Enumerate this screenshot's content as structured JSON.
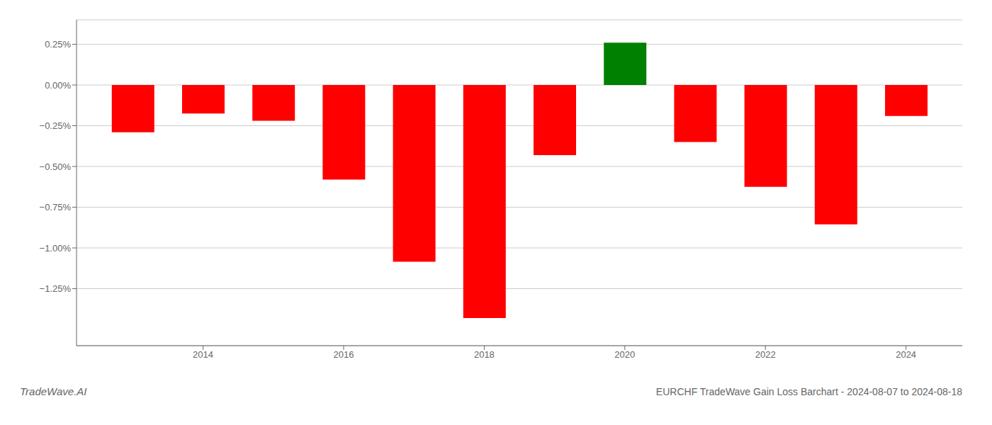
{
  "chart_data": {
    "type": "bar",
    "title": "EURCHF TradeWave Gain Loss Barchart - 2024-08-07 to 2024-08-18",
    "annotations": [
      "TradeWave.AI"
    ],
    "x": [
      2013,
      2014,
      2015,
      2016,
      2017,
      2018,
      2019,
      2020,
      2021,
      2022,
      2023,
      2024
    ],
    "values": [
      -0.0029,
      -0.00175,
      -0.0022,
      -0.0058,
      -0.01085,
      -0.0143,
      -0.0043,
      0.0026,
      -0.0035,
      -0.00625,
      -0.00855,
      -0.0019
    ],
    "colors": [
      "#ff0000",
      "#ff0000",
      "#ff0000",
      "#ff0000",
      "#ff0000",
      "#ff0000",
      "#ff0000",
      "#008000",
      "#ff0000",
      "#ff0000",
      "#ff0000",
      "#ff0000"
    ],
    "xlim": [
      2012.2,
      2024.8
    ],
    "xticks": [
      2014,
      2016,
      2018,
      2020,
      2022,
      2024
    ],
    "ylim": [
      -0.016,
      0.004
    ],
    "yticks": [
      {
        "value": 0.0025,
        "label": "0.25%"
      },
      {
        "value": 0.0,
        "label": "0.00%"
      },
      {
        "value": -0.0025,
        "label": "−0.25%"
      },
      {
        "value": -0.005,
        "label": "−0.50%"
      },
      {
        "value": -0.0075,
        "label": "−0.75%"
      },
      {
        "value": -0.01,
        "label": "−1.00%"
      },
      {
        "value": -0.0125,
        "label": "−1.25%"
      }
    ],
    "grid": true
  }
}
